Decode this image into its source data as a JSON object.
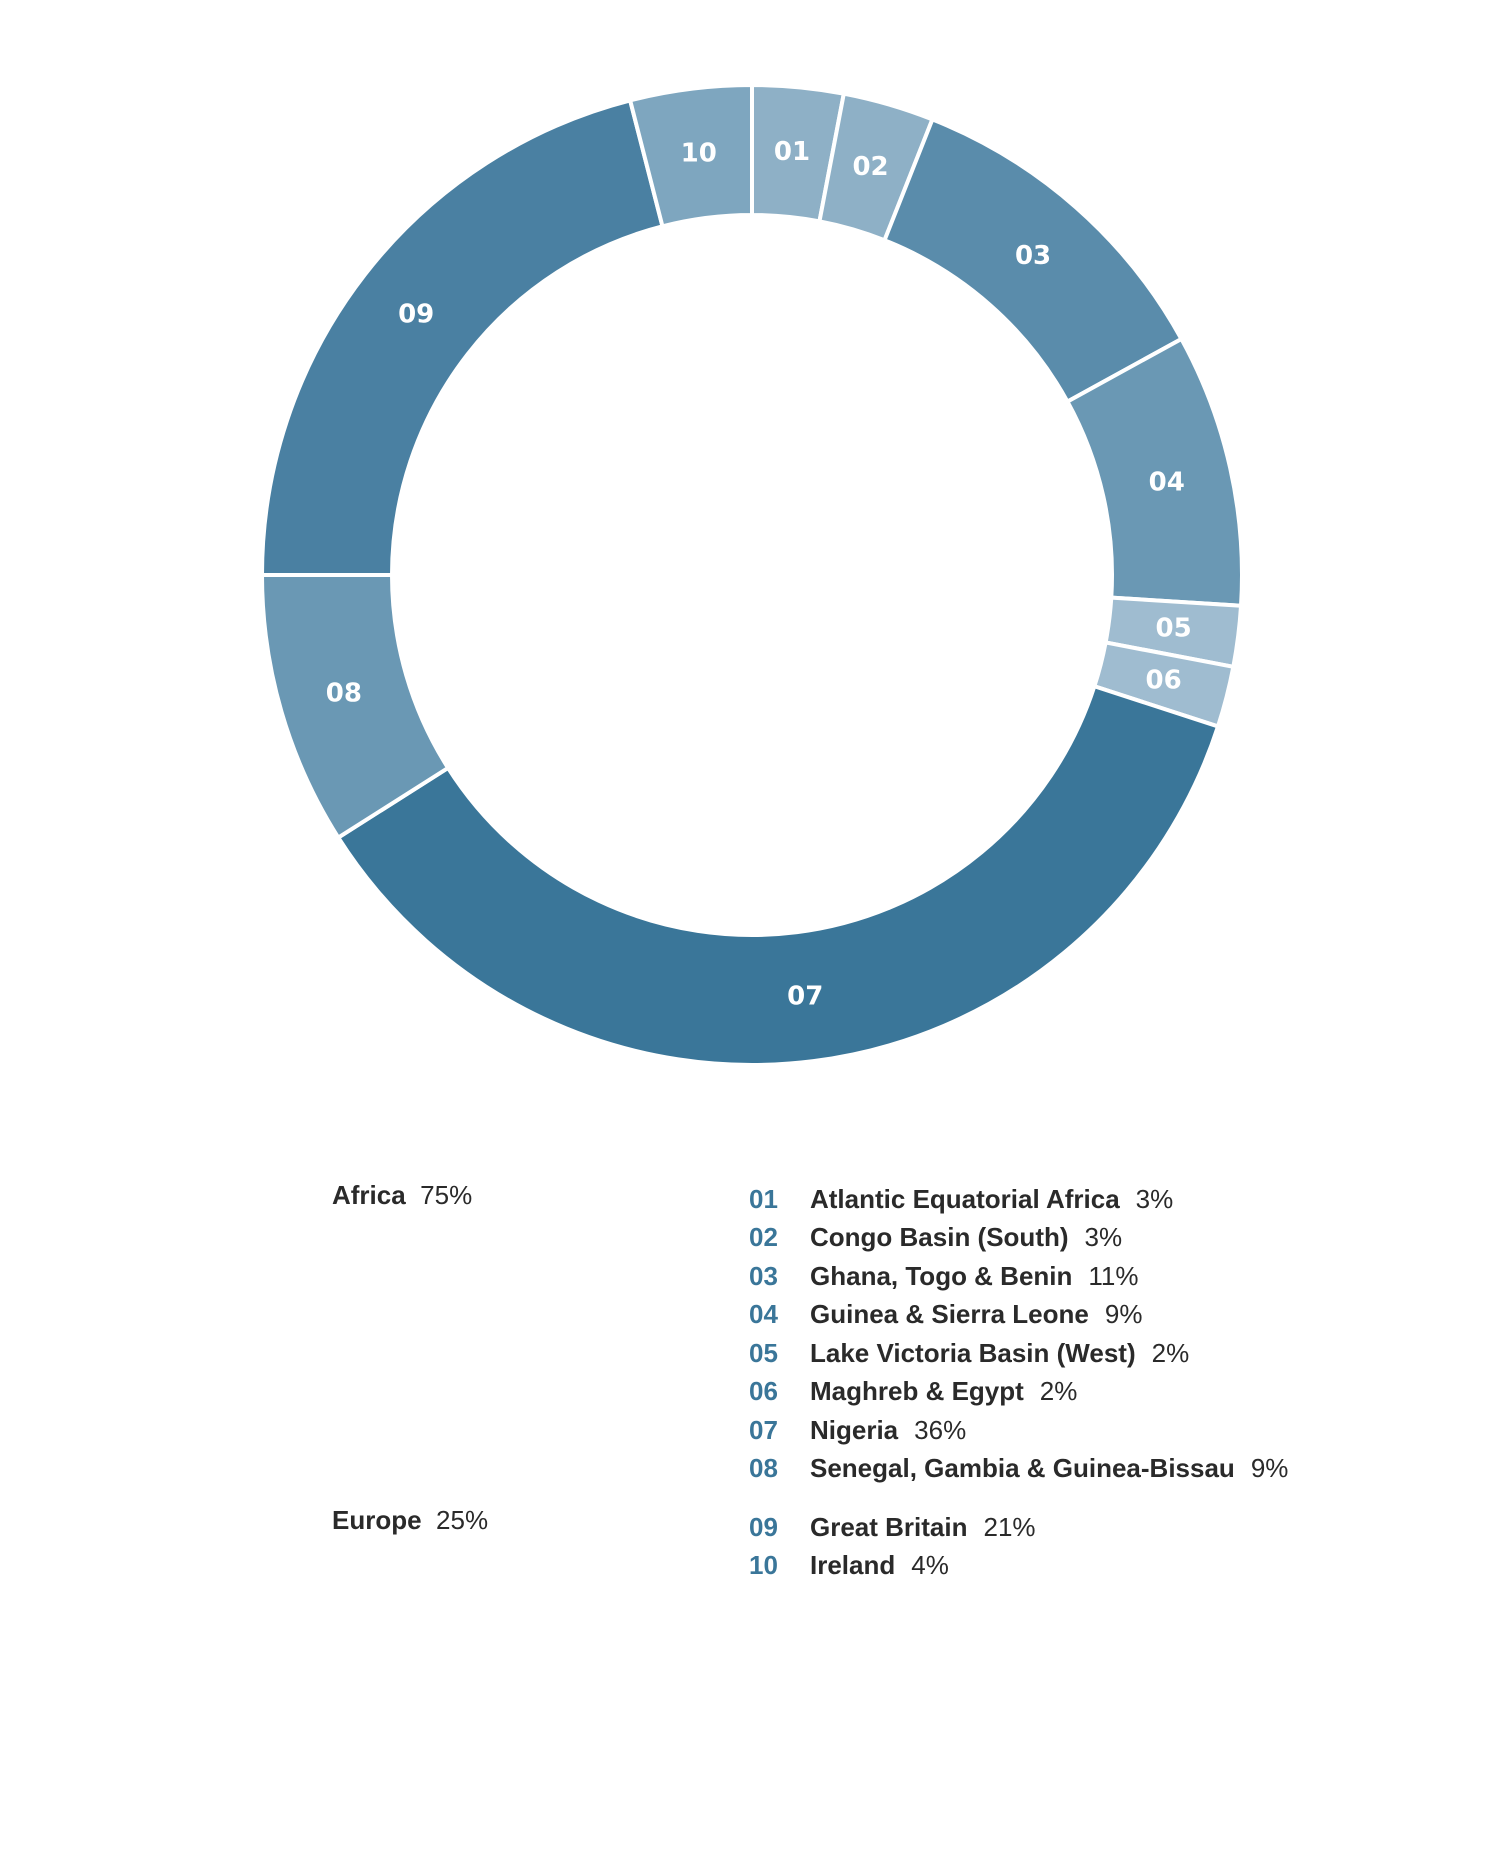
{
  "chart_data": {
    "type": "pie",
    "donut": true,
    "title": "",
    "slices": [
      {
        "code": "01",
        "name": "Atlantic Equatorial Africa",
        "value": 3,
        "pct_label": "3%",
        "group": "Africa",
        "color": "#8eb0c6"
      },
      {
        "code": "02",
        "name": "Congo Basin (South)",
        "value": 3,
        "pct_label": "3%",
        "group": "Africa",
        "color": "#8eb0c6"
      },
      {
        "code": "03",
        "name": "Ghana, Togo & Benin",
        "value": 11,
        "pct_label": "11%",
        "group": "Africa",
        "color": "#5a8cab"
      },
      {
        "code": "04",
        "name": "Guinea & Sierra Leone",
        "value": 9,
        "pct_label": "9%",
        "group": "Africa",
        "color": "#6a98b4"
      },
      {
        "code": "05",
        "name": "Lake Victoria Basin (West)",
        "value": 2,
        "pct_label": "2%",
        "group": "Africa",
        "color": "#9fbcd0"
      },
      {
        "code": "06",
        "name": "Maghreb & Egypt",
        "value": 2,
        "pct_label": "2%",
        "group": "Africa",
        "color": "#9fbcd0"
      },
      {
        "code": "07",
        "name": "Nigeria",
        "value": 36,
        "pct_label": "36%",
        "group": "Africa",
        "color": "#3a7699"
      },
      {
        "code": "08",
        "name": "Senegal, Gambia & Guinea-Bissau",
        "value": 9,
        "pct_label": "9%",
        "group": "Africa",
        "color": "#6a98b4"
      },
      {
        "code": "09",
        "name": "Great Britain",
        "value": 21,
        "pct_label": "21%",
        "group": "Europe",
        "color": "#4a80a2"
      },
      {
        "code": "10",
        "name": "Ireland",
        "value": 4,
        "pct_label": "4%",
        "group": "Europe",
        "color": "#7ea6bf"
      }
    ]
  },
  "groups": [
    {
      "name": "Africa",
      "pct_label": "75%"
    },
    {
      "name": "Europe",
      "pct_label": "25%"
    }
  ],
  "colors": {
    "code_text": "#3a7699",
    "separator": "#ffffff",
    "text": "#2a2a2a"
  }
}
